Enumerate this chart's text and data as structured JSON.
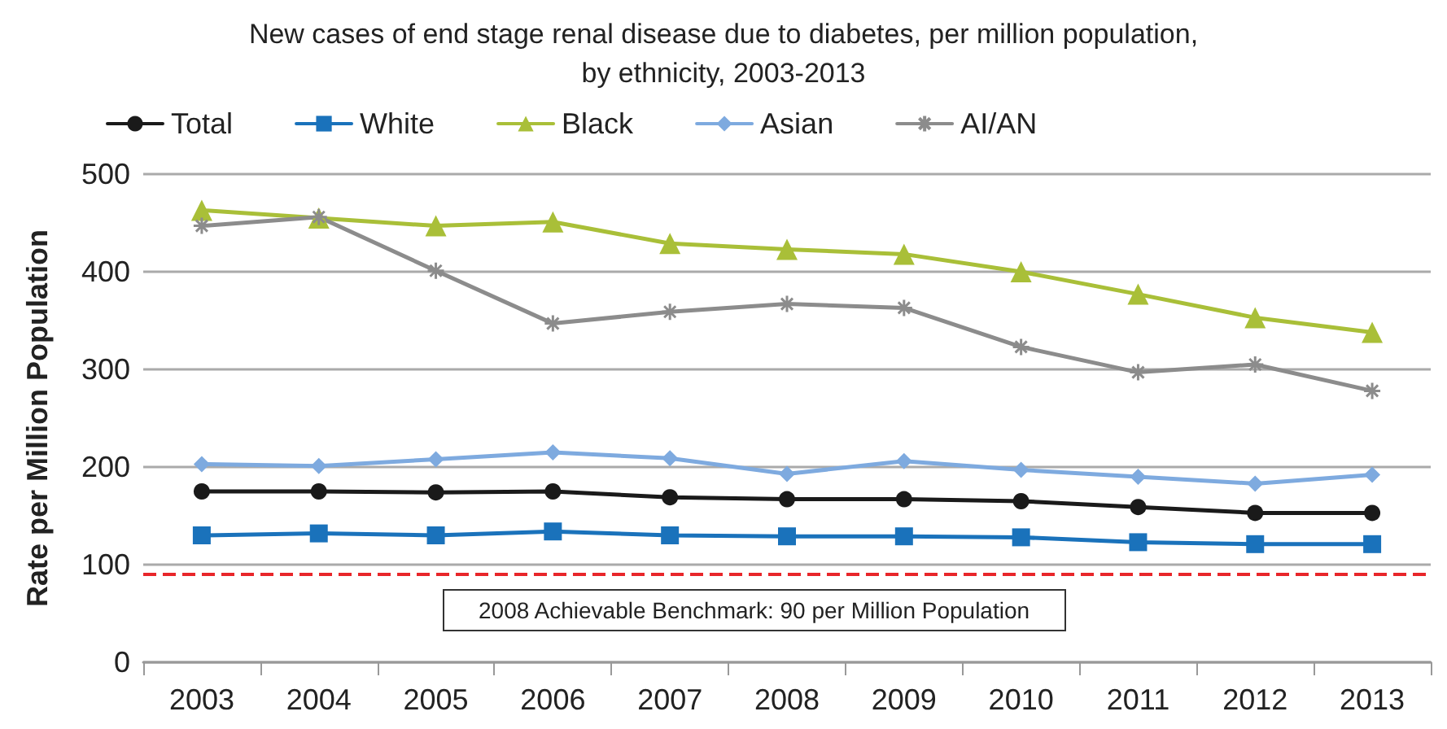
{
  "chart_data": {
    "type": "line",
    "title": "New cases of end stage renal disease due to diabetes, per million population,\nby ethnicity, 2003-2013",
    "ylabel": "Rate per Million Population",
    "categories": [
      "2003",
      "2004",
      "2005",
      "2006",
      "2007",
      "2008",
      "2009",
      "2010",
      "2011",
      "2012",
      "2013"
    ],
    "series": [
      {
        "name": "Total",
        "color": "#1a1a1a",
        "marker": "circle",
        "values": [
          175,
          175,
          174,
          175,
          169,
          167,
          167,
          165,
          159,
          153,
          153
        ]
      },
      {
        "name": "White",
        "color": "#1a72bb",
        "marker": "square",
        "values": [
          130,
          132,
          130,
          134,
          130,
          129,
          129,
          128,
          123,
          121,
          121
        ]
      },
      {
        "name": "Black",
        "color": "#a9bf38",
        "marker": "triangle",
        "values": [
          463,
          455,
          447,
          451,
          429,
          423,
          418,
          400,
          377,
          353,
          338
        ]
      },
      {
        "name": "Asian",
        "color": "#7eaadf",
        "marker": "diamond",
        "values": [
          203,
          201,
          208,
          215,
          209,
          193,
          206,
          197,
          190,
          183,
          192
        ]
      },
      {
        "name": "AI/AN",
        "color": "#8c8c8c",
        "marker": "cross",
        "values": [
          447,
          456,
          401,
          347,
          359,
          367,
          363,
          323,
          297,
          305,
          278
        ]
      }
    ],
    "ylim": [
      0,
      500
    ],
    "yticks": [
      0,
      100,
      200,
      300,
      400,
      500
    ],
    "grid": "y",
    "legend": "top",
    "ref_lines": [
      {
        "axis": "y",
        "value": 90,
        "color": "#e8262a",
        "line_style": "dashed"
      }
    ],
    "annotations": [
      "2008 Achievable Benchmark: 90 per Million Population"
    ]
  }
}
